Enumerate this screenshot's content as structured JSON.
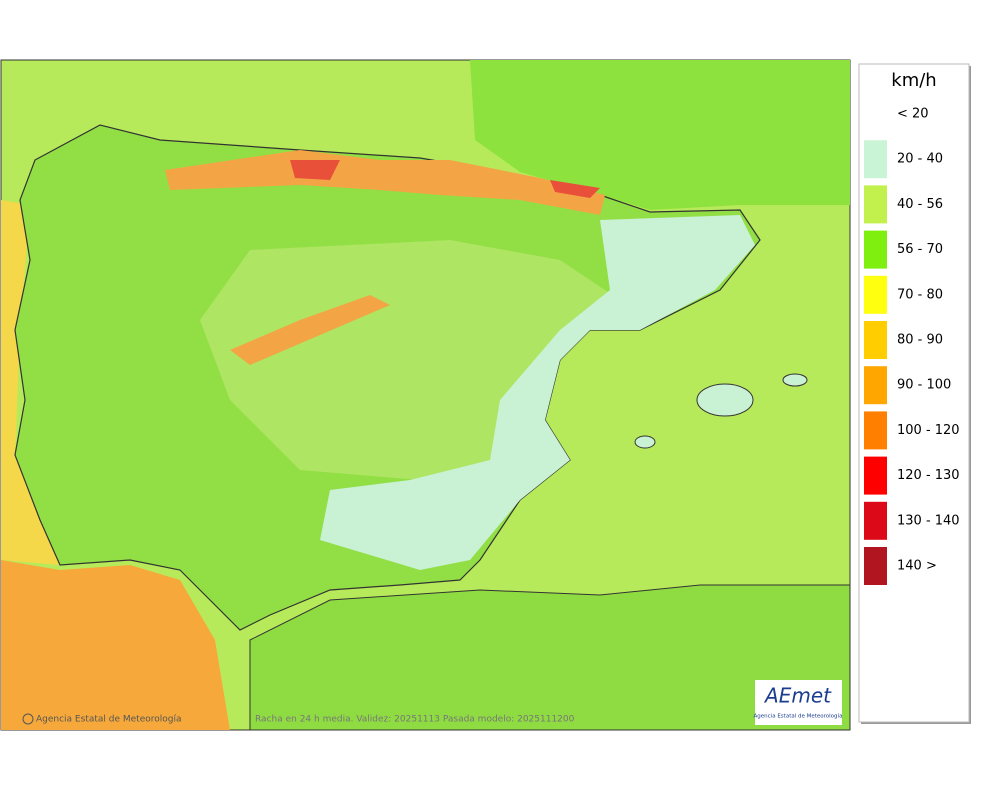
{
  "legend": {
    "unit": "km/h",
    "items": [
      {
        "label": "< 20"
      },
      {
        "label": "20 - 40",
        "color": "#c9f5d6"
      },
      {
        "label": "40 - 56",
        "color": "#c2f04c"
      },
      {
        "label": "56 - 70",
        "color": "#7fef10"
      },
      {
        "label": "70 - 80",
        "color": "#ffff10"
      },
      {
        "label": "80 - 90",
        "color": "#ffcd00"
      },
      {
        "label": "90 - 100",
        "color": "#ffa600"
      },
      {
        "label": "100 - 120",
        "color": "#ff8000"
      },
      {
        "label": "120 - 130",
        "color": "#ff0000"
      },
      {
        "label": "130 - 140",
        "color": "#dc0a18"
      },
      {
        "label": "140 >",
        "color": "#b01520"
      }
    ]
  },
  "footer": {
    "credit": "Agencia Estatal de Meteorología",
    "caption": "Racha en 24 h media. Validez: 20251113 Pasada modelo: 2025111200"
  },
  "logo": {
    "name": "AEmet",
    "subtitle": "Agencia Estatal de Meteorología"
  }
}
